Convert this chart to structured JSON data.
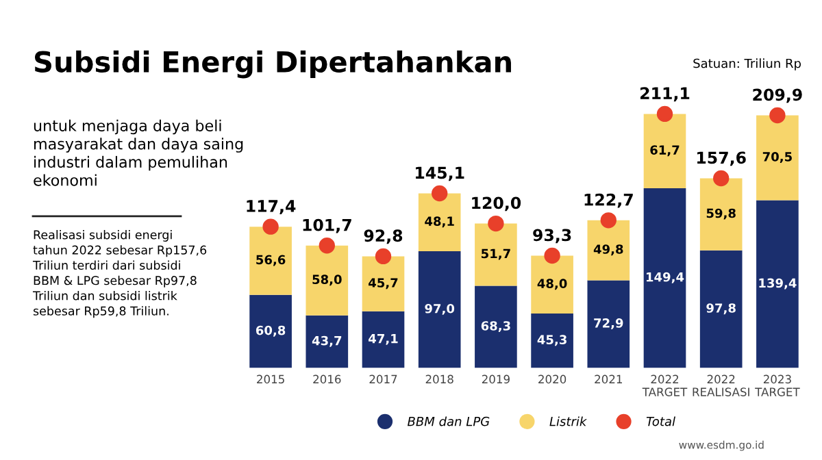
{
  "chart_data": {
    "type": "bar",
    "title": "Subsidi Energi Dipertahankan",
    "subtitle": "untuk menjaga daya beli\nmasyarakat dan daya saing\nindustri dalam pemulihan\nekonomi",
    "annotations": [
      "Satuan: Triliun Rp",
      "Realisasi subsidi energi\ntahun 2022 sebesar Rp157,6\nTriliun terdiri dari subsidi\nBBM & LPG sebesar Rp97,8\nTriliun dan subsidi listrik\nsebesar Rp59,8 Triliun.",
      "www.esdm.go.id"
    ],
    "categories": [
      "2015",
      "2016",
      "2017",
      "2018",
      "2019",
      "2020",
      "2021",
      "2022\nTARGET",
      "2022\nREALISASI",
      "2023\nTARGET"
    ],
    "stacked": true,
    "legend": "bottom",
    "series": [
      {
        "name": "BBM dan LPG",
        "color": "#1b2f6e",
        "values": [
          60.8,
          43.7,
          47.1,
          97.0,
          68.3,
          45.3,
          72.9,
          149.4,
          97.8,
          139.4
        ],
        "value_labels": [
          "60,8",
          "43,7",
          "47,1",
          "97,0",
          "68,3",
          "45,3",
          "72,9",
          "149,4",
          "97,8",
          "139,4"
        ]
      },
      {
        "name": "Listrik",
        "color": "#f7d56b",
        "values": [
          56.6,
          58.0,
          45.7,
          48.1,
          51.7,
          48.0,
          49.8,
          61.7,
          59.8,
          70.5
        ],
        "value_labels": [
          "56,6",
          "58,0",
          "45,7",
          "48,1",
          "51,7",
          "48,0",
          "49,8",
          "61,7",
          "59,8",
          "70,5"
        ]
      },
      {
        "name": "Total",
        "type": "scatter",
        "color": "#e8402a",
        "values": [
          117.4,
          101.7,
          92.8,
          145.1,
          120.0,
          93.3,
          122.7,
          211.1,
          157.6,
          209.9
        ],
        "value_labels": [
          "117,4",
          "101,7",
          "92,8",
          "145,1",
          "120,0",
          "93,3",
          "122,7",
          "211,1",
          "157,6",
          "209,9"
        ]
      }
    ]
  }
}
